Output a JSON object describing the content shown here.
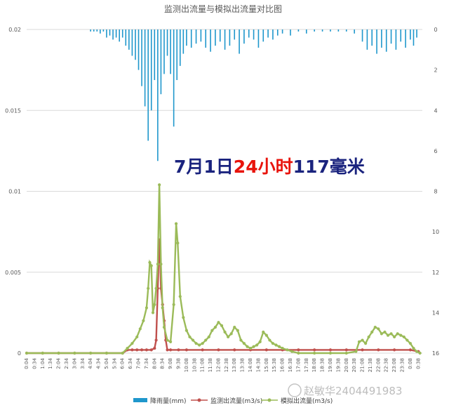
{
  "chart_data": {
    "type": "line",
    "title": "监测出流量与模拟出流量对比图",
    "left_axis": {
      "range": [
        0,
        0.02
      ],
      "ticks": [
        "0",
        "0.005",
        "0.01",
        "0.015",
        "0.02"
      ]
    },
    "right_axis": {
      "range": [
        0,
        16
      ],
      "inverted": true,
      "ticks": [
        "0",
        "2",
        "4",
        "6",
        "8",
        "10",
        "12",
        "14",
        "16"
      ]
    },
    "x_ticks": [
      "0:04",
      "0:34",
      "1:04",
      "1:34",
      "2:04",
      "2:34",
      "3:04",
      "3:34",
      "4:04",
      "4:34",
      "5:04",
      "5:34",
      "6:04",
      "6:34",
      "7:04",
      "7:34",
      "8:04",
      "8:34",
      "9:08",
      "9:38",
      "10:08",
      "10:38",
      "11:08",
      "11:38",
      "12:08",
      "12:38",
      "13:08",
      "13:38",
      "14:08",
      "14:38",
      "15:08",
      "15:38",
      "16:08",
      "16:38",
      "17:08",
      "17:38",
      "18:08",
      "18:38",
      "19:08",
      "19:38",
      "20:08",
      "20:38",
      "21:08",
      "21:38",
      "22:08",
      "22:38",
      "23:08",
      "23:38",
      "0:08",
      "0:38"
    ],
    "grid": true,
    "legend_position": "bottom",
    "series": [
      {
        "name": "降雨量(mm)",
        "kind": "bar",
        "axis": "right",
        "color": "#1f97cc",
        "x": [
          4.0,
          4.2,
          4.4,
          4.6,
          4.8,
          5.0,
          5.2,
          5.4,
          5.6,
          5.8,
          6.0,
          6.2,
          6.4,
          6.6,
          6.8,
          7.0,
          7.2,
          7.4,
          7.6,
          7.8,
          8.0,
          8.2,
          8.4,
          8.6,
          8.8,
          9.0,
          9.2,
          9.4,
          9.6,
          9.8,
          10.0,
          10.3,
          10.6,
          10.9,
          11.2,
          11.5,
          11.8,
          12.1,
          12.4,
          12.7,
          13.0,
          13.3,
          13.6,
          13.9,
          14.2,
          14.5,
          14.8,
          15.1,
          15.4,
          15.7,
          16.0,
          16.5,
          17.0,
          17.5,
          18.0,
          18.5,
          19.0,
          19.5,
          20.0,
          20.5,
          21.0,
          21.3,
          21.6,
          21.9,
          22.2,
          22.5,
          22.8,
          23.1,
          23.4,
          23.7,
          24.0,
          24.2,
          24.4
        ],
        "values": [
          0.1,
          0.1,
          0.1,
          0.2,
          0.1,
          0.4,
          0.3,
          0.5,
          0.4,
          0.6,
          0.4,
          0.8,
          1.0,
          1.3,
          1.5,
          2.0,
          2.8,
          3.8,
          5.5,
          4.0,
          2.5,
          6.5,
          3.2,
          2.2,
          1.3,
          2.2,
          4.8,
          2.5,
          1.8,
          1.2,
          0.8,
          0.9,
          0.7,
          0.6,
          0.9,
          1.1,
          0.8,
          0.6,
          1.0,
          0.8,
          0.5,
          1.2,
          0.7,
          0.4,
          0.5,
          0.9,
          0.6,
          0.4,
          0.5,
          0.3,
          0.2,
          0.3,
          0.1,
          0.2,
          0.1,
          0.1,
          0.1,
          0.1,
          0.1,
          0.2,
          0.6,
          1.0,
          0.8,
          1.2,
          0.9,
          1.1,
          0.7,
          1.0,
          0.6,
          0.9,
          0.5,
          0.8,
          0.4
        ]
      },
      {
        "name": "监测出流量(m3/s)",
        "kind": "line",
        "axis": "left",
        "color": "#c0504d",
        "x": [
          0,
          1,
          2,
          3,
          4,
          5,
          6,
          6.3,
          6.6,
          6.9,
          7.2,
          7.5,
          7.8,
          8.0,
          8.1,
          8.2,
          8.3,
          8.35,
          8.4,
          8.5,
          8.6,
          8.7,
          8.8,
          9.0,
          9.5,
          10,
          11,
          12,
          13,
          14,
          15,
          16,
          17,
          18,
          19,
          20,
          21,
          22,
          23,
          24,
          24.5
        ],
        "values": [
          0,
          0,
          0,
          0,
          0,
          0,
          0,
          0.0002,
          0.0002,
          0.0002,
          0.0002,
          0.0002,
          0.0002,
          0.0003,
          0.0008,
          0.004,
          0.007,
          0.0058,
          0.004,
          0.003,
          0.002,
          0.0008,
          0.0002,
          0.0002,
          0.0002,
          0.0002,
          0.0002,
          0.0002,
          0.0002,
          0.0002,
          0.0002,
          0.0002,
          0.0002,
          0.0002,
          0.0002,
          0.0002,
          0.0002,
          0.0002,
          0.0002,
          0.0002,
          0.0001
        ]
      },
      {
        "name": "模拟出流量(m3/s)",
        "kind": "line",
        "axis": "left",
        "color": "#9bbb59",
        "x": [
          0,
          1,
          2,
          3,
          4,
          5,
          6,
          6.3,
          6.6,
          6.9,
          7.1,
          7.3,
          7.5,
          7.6,
          7.7,
          7.8,
          7.9,
          8.0,
          8.1,
          8.2,
          8.3,
          8.4,
          8.5,
          8.6,
          8.8,
          9.0,
          9.2,
          9.35,
          9.45,
          9.6,
          9.8,
          10.0,
          10.2,
          10.4,
          10.6,
          10.8,
          11.0,
          11.2,
          11.4,
          11.6,
          11.8,
          12.0,
          12.2,
          12.4,
          12.6,
          12.8,
          13.0,
          13.2,
          13.4,
          13.6,
          13.8,
          14.0,
          14.2,
          14.4,
          14.6,
          14.8,
          15.0,
          15.2,
          15.4,
          15.6,
          15.8,
          16.0,
          16.3,
          16.6,
          17,
          18,
          19,
          20,
          20.6,
          20.8,
          21.0,
          21.2,
          21.4,
          21.6,
          21.8,
          22.0,
          22.2,
          22.4,
          22.6,
          22.8,
          23.0,
          23.2,
          23.4,
          23.6,
          23.8,
          24.0,
          24.2,
          24.4,
          24.6
        ],
        "values": [
          0,
          0,
          0,
          0,
          0,
          0,
          0,
          0.0003,
          0.0006,
          0.001,
          0.0015,
          0.002,
          0.0028,
          0.004,
          0.0056,
          0.0054,
          0.0025,
          0.003,
          0.004,
          0.0055,
          0.0104,
          0.0055,
          0.0028,
          0.0016,
          0.0008,
          0.0007,
          0.003,
          0.008,
          0.0068,
          0.0035,
          0.0022,
          0.0014,
          0.001,
          0.0008,
          0.0006,
          0.0005,
          0.0006,
          0.0008,
          0.001,
          0.0014,
          0.0016,
          0.0019,
          0.0017,
          0.0013,
          0.001,
          0.0012,
          0.0016,
          0.0014,
          0.0008,
          0.0006,
          0.0004,
          0.0003,
          0.0004,
          0.0005,
          0.0007,
          0.0013,
          0.0011,
          0.0008,
          0.0006,
          0.0005,
          0.0004,
          0.0003,
          0.0002,
          0.0001,
          0,
          0,
          0,
          0,
          0.0001,
          0.0007,
          0.0008,
          0.0006,
          0.001,
          0.0013,
          0.0016,
          0.0015,
          0.0012,
          0.0013,
          0.0011,
          0.0012,
          0.001,
          0.0012,
          0.0011,
          0.001,
          0.0008,
          0.0006,
          0.0003,
          0.0001,
          0
        ]
      }
    ],
    "annotation": {
      "part1": "7月1日",
      "part2": "24小时",
      "part3": "117毫米"
    },
    "watermark": "赵敏华2404491983"
  },
  "colors": {
    "annotation_dark": "#1a237e",
    "annotation_red": "#e8140c"
  }
}
